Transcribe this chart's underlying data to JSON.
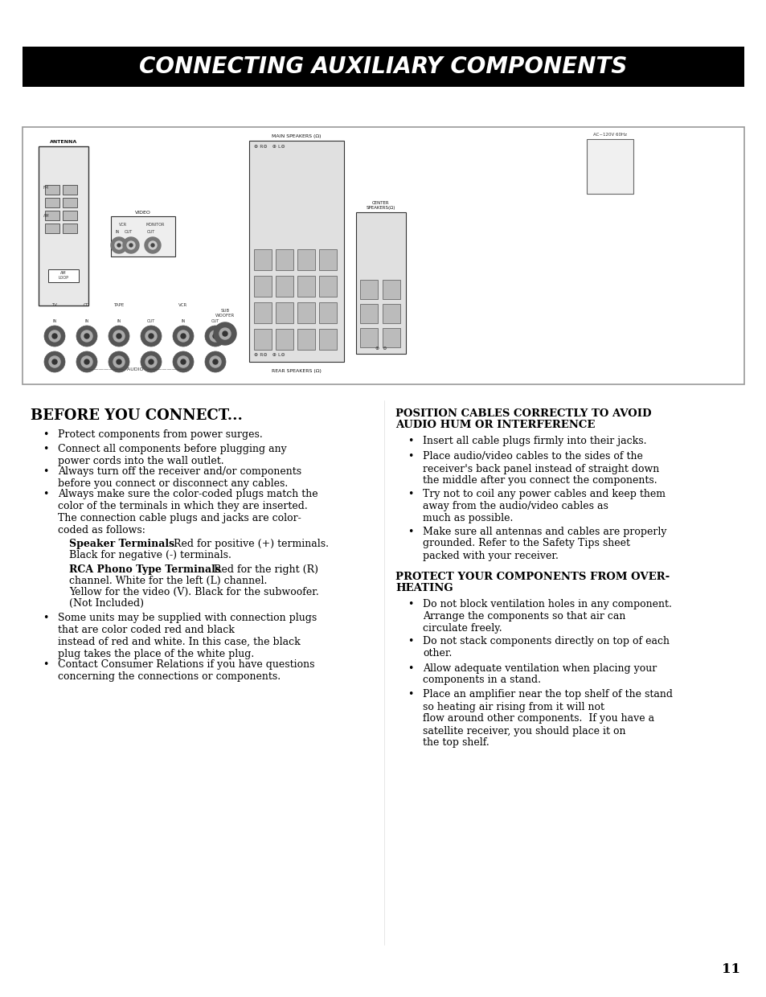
{
  "title_text": "CONNECTING AUXILIARY COMPONENTS",
  "title_bg": "#000000",
  "title_color": "#ffffff",
  "title_fontsize": 20,
  "page_bg": "#ffffff",
  "section1_title": "BEFORE YOU CONNECT...",
  "section1_bullets": [
    "Protect components from power surges.",
    "Connect all components before plugging any\npower cords into the wall outlet.",
    "Always turn off the receiver and/or components\nbefore you connect or disconnect any cables.",
    "Always make sure the color-coded plugs match the\ncolor of the terminals in which they are inserted.\nThe connection cable plugs and jacks are color-\ncoded as follows:"
  ],
  "speaker_bold": "Speaker Terminals",
  "speaker_normal_after": "  Red for positive (+) terminals.",
  "speaker_normal2": "Black for negative (-) terminals.",
  "rca_bold": "RCA Phono Type Terminals",
  "rca_normal_after": "  Red for the right (R)",
  "rca_lines": [
    "channel. White for the left (L) channel.",
    "Yellow for the video (V). Black for the subwoofer.",
    "(Not Included)"
  ],
  "section1_bullets2": [
    "Some units may be supplied with connection plugs\nthat are color coded red and black\ninstead of red and white. In this case, the black\nplug takes the place of the white plug.",
    "Contact Consumer Relations if you have questions\nconcerning the connections or components."
  ],
  "section2_title_line1": "POSITION CABLES CORRECTLY TO AVOID",
  "section2_title_line2": "AUDIO HUM OR INTERFERENCE",
  "section2_bullets": [
    "Insert all cable plugs firmly into their jacks.",
    "Place audio/video cables to the sides of the\nreceiver's back panel instead of straight down\nthe middle after you connect the components.",
    "Try not to coil any power cables and keep them\naway from the audio/video cables as\nmuch as possible.",
    "Make sure all antennas and cables are properly\ngrounded. Refer to the Safety Tips sheet\npacked with your receiver."
  ],
  "section3_title_line1": "PROTECT YOUR COMPONENTS FROM OVER-",
  "section3_title_line2": "HEATING",
  "section3_bullets": [
    "Do not block ventilation holes in any component.\nArrange the components so that air can\ncirculate freely.",
    "Do not stack components directly on top of each\nother.",
    "Allow adequate ventilation when placing your\ncomponents in a stand.",
    "Place an amplifier near the top shelf of the stand\nso heating air rising from it will not\nflow around other components.  If you have a\nsatellite receiver, you should place it on\nthe top shelf."
  ],
  "page_number": "11",
  "body_fontsize": 9.0,
  "bullet_char": "•"
}
